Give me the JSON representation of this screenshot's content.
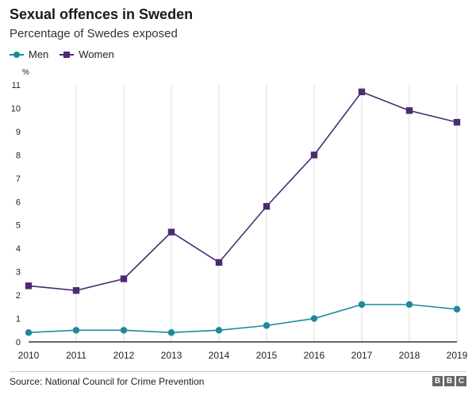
{
  "header": {
    "title": "Sexual offences in Sweden",
    "subtitle": "Percentage of Swedes exposed"
  },
  "colors": {
    "men": "#1a8a9e",
    "women": "#4b2b72",
    "grid": "#dddddd",
    "axis": "#333333"
  },
  "chart_data": {
    "type": "line",
    "title": "Sexual offences in Sweden",
    "subtitle": "Percentage of Swedes exposed",
    "ylabel": "%",
    "xlabel": "",
    "x": [
      2010,
      2011,
      2012,
      2013,
      2014,
      2015,
      2016,
      2017,
      2018,
      2019
    ],
    "ylim": [
      0,
      11
    ],
    "yticks": [
      0,
      1,
      2,
      3,
      4,
      5,
      6,
      7,
      8,
      9,
      10,
      11
    ],
    "grid": "vertical",
    "legend": "top-left",
    "series": [
      {
        "name": "Men",
        "marker": "circle",
        "values": [
          0.4,
          0.5,
          0.5,
          0.4,
          0.5,
          0.7,
          1.0,
          1.6,
          1.6,
          1.4
        ]
      },
      {
        "name": "Women",
        "marker": "square",
        "values": [
          2.4,
          2.2,
          2.7,
          4.7,
          3.4,
          5.8,
          8.0,
          10.7,
          9.9,
          9.4
        ]
      }
    ]
  },
  "footer": {
    "source": "Source: National Council for Crime Prevention",
    "logo": [
      "B",
      "B",
      "C"
    ]
  }
}
